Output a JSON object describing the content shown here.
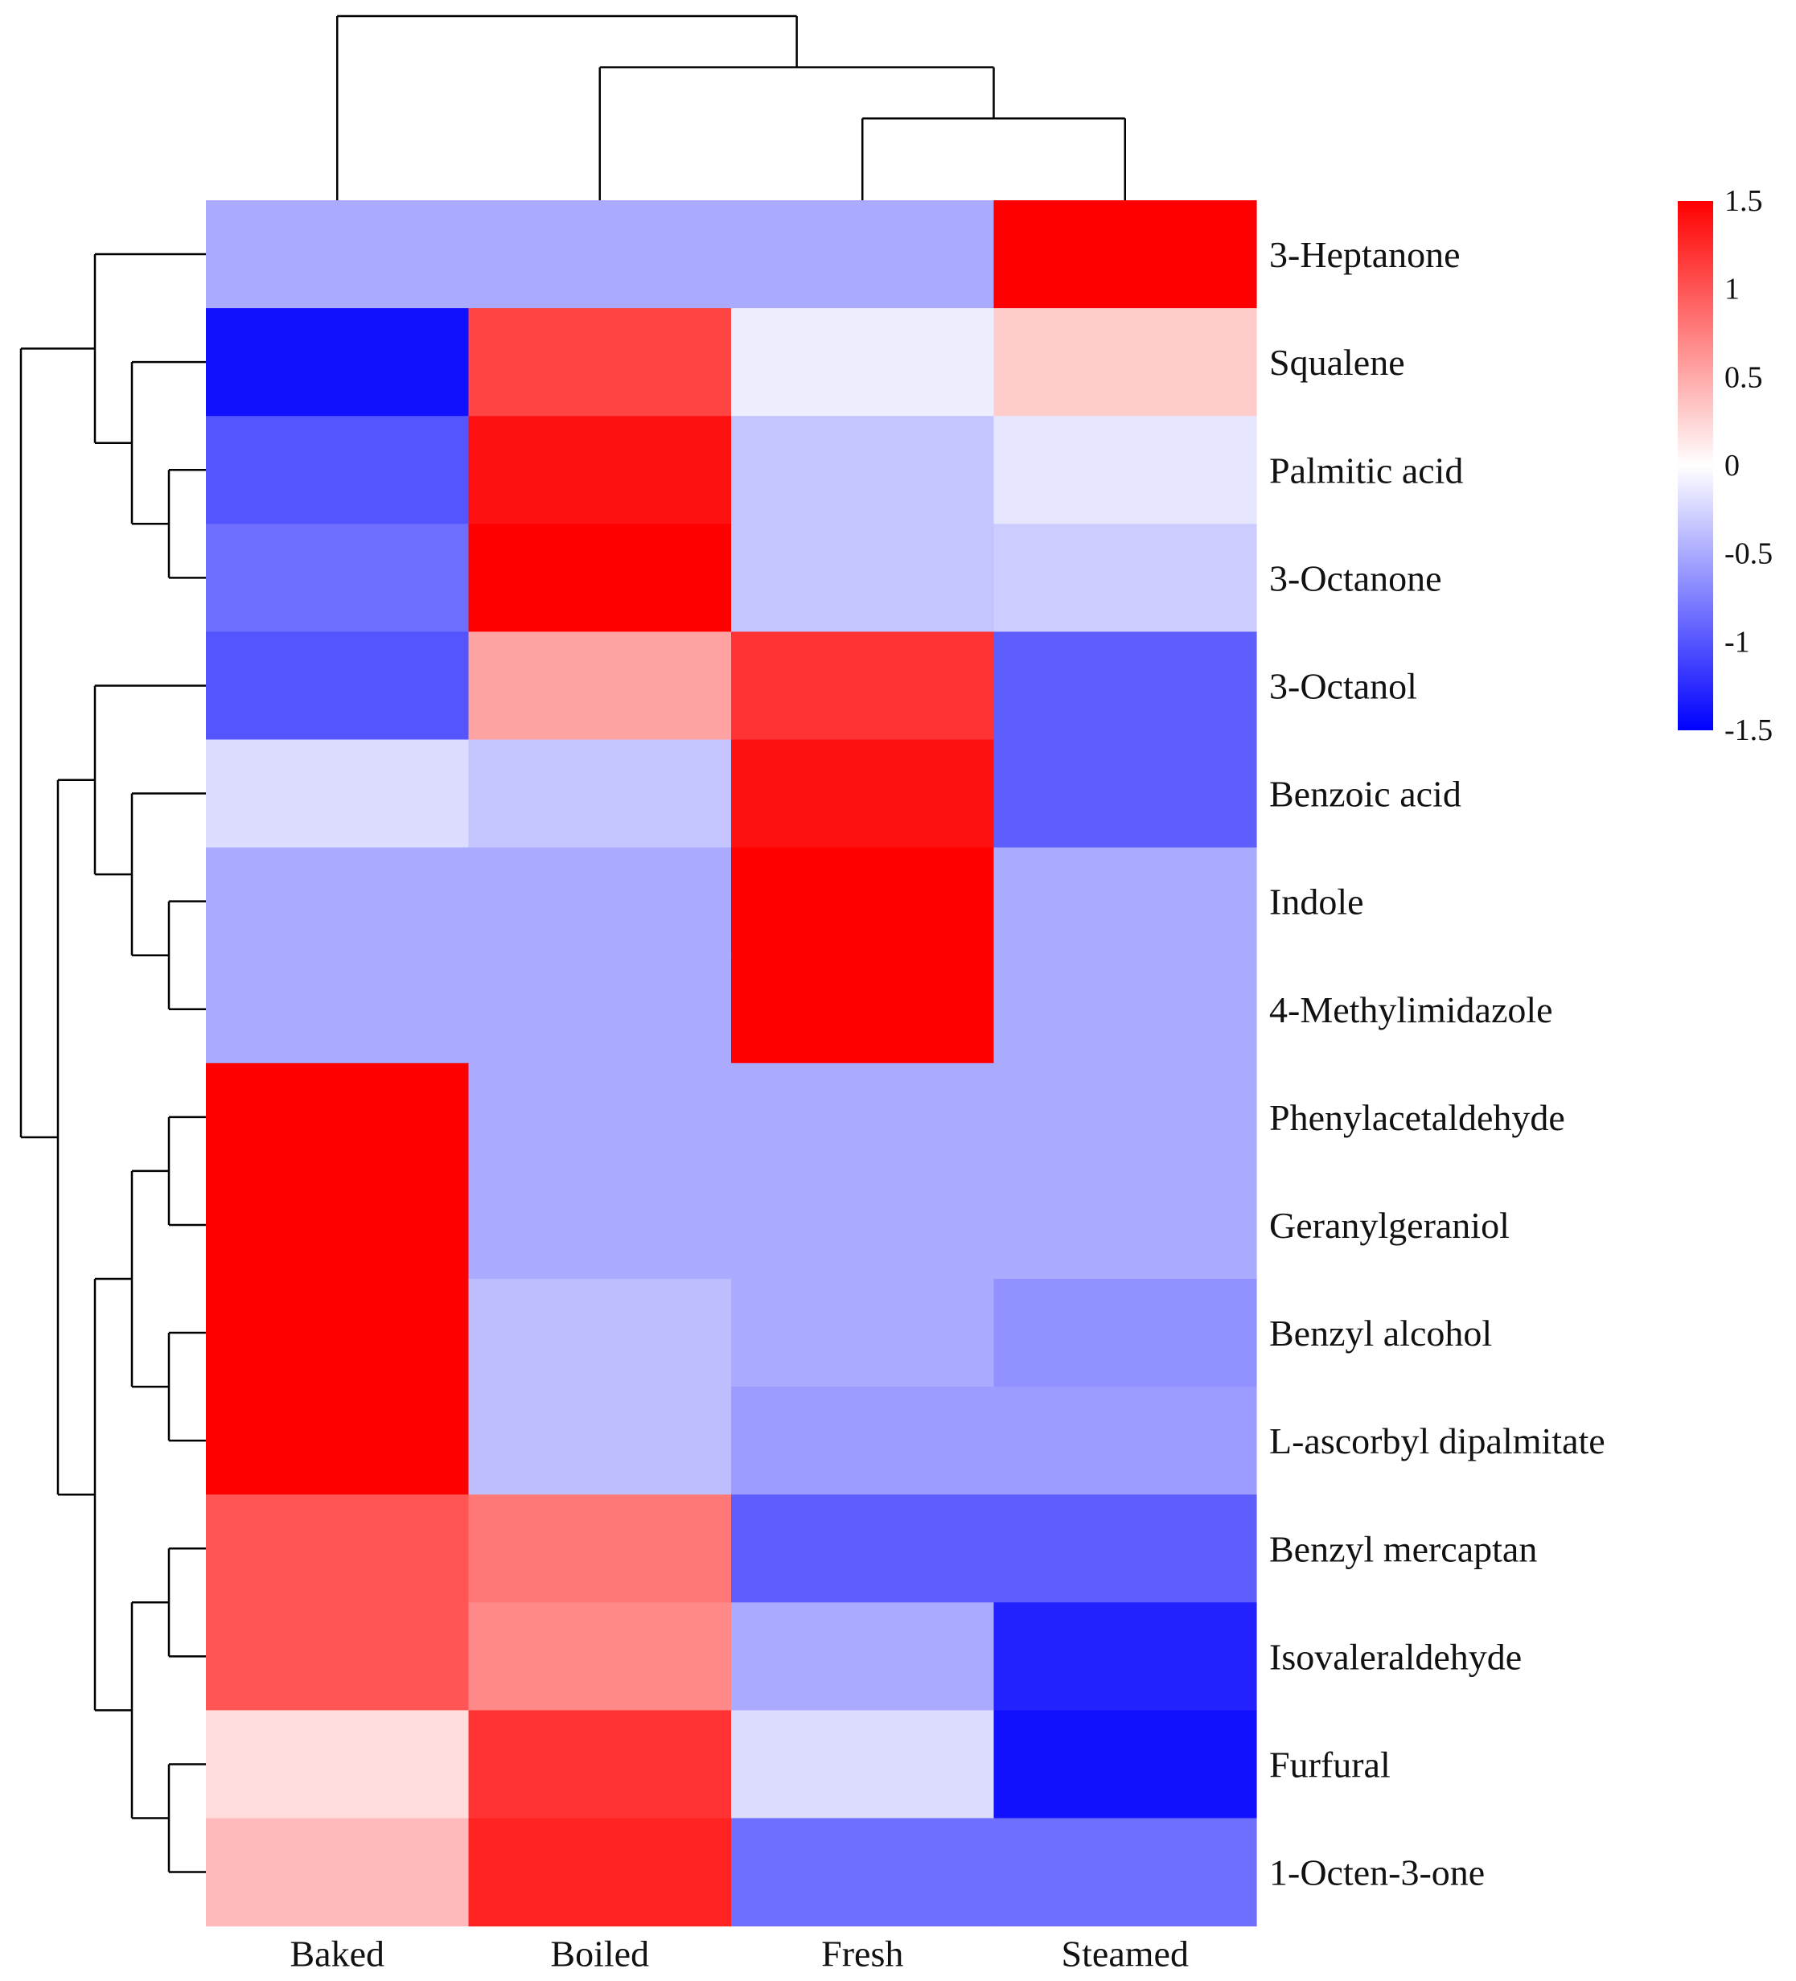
{
  "chart_data": {
    "type": "heatmap",
    "title": "",
    "xlabel": "",
    "ylabel": "",
    "columns": [
      "Baked",
      "Boiled",
      "Fresh",
      "Steamed"
    ],
    "rows": [
      "3-Heptanone",
      "Squalene",
      "Palmitic acid",
      "3-Octanone",
      "3-Octanol",
      "Benzoic acid",
      "Indole",
      "4-Methylimidazole",
      "Phenylacetaldehyde",
      "Geranylgeraniol",
      "Benzyl alcohol",
      "L-ascorbyl dipalmitate",
      "Benzyl mercaptan",
      "Isovaleraldehyde",
      "Furfural",
      "1-Octen-3-one"
    ],
    "values": [
      [
        -0.5,
        -0.5,
        -0.5,
        1.5
      ],
      [
        -1.4,
        1.1,
        -0.1,
        0.3
      ],
      [
        -1.0,
        1.4,
        -0.35,
        -0.15
      ],
      [
        -0.85,
        1.5,
        -0.35,
        -0.3
      ],
      [
        -1.0,
        0.55,
        1.2,
        -0.95
      ],
      [
        -0.2,
        -0.35,
        1.4,
        -0.95
      ],
      [
        -0.5,
        -0.5,
        1.5,
        -0.5
      ],
      [
        -0.5,
        -0.5,
        1.5,
        -0.5
      ],
      [
        1.5,
        -0.5,
        -0.5,
        -0.5
      ],
      [
        1.5,
        -0.5,
        -0.5,
        -0.5
      ],
      [
        1.5,
        -0.38,
        -0.5,
        -0.65
      ],
      [
        1.5,
        -0.38,
        -0.58,
        -0.58
      ],
      [
        1.0,
        0.8,
        -0.95,
        -0.95
      ],
      [
        1.0,
        0.7,
        -0.5,
        -1.3
      ],
      [
        0.2,
        1.2,
        -0.2,
        -1.4
      ],
      [
        0.4,
        1.3,
        -0.85,
        -0.85
      ]
    ],
    "color_scale": {
      "min": -1.5,
      "max": 1.5,
      "ticks": [
        "1.5",
        "1",
        "0.5",
        "0",
        "-0.5",
        "-1",
        "-1.5"
      ],
      "low_color": "#0000ff",
      "mid_color": "#ffffff",
      "high_color": "#ff0000"
    },
    "row_dendrogram": "((3-Heptanone,(Squalene,(Palmitic acid,3-Octanone))),((3-Octanol,(Benzoic acid,(Indole,4-Methylimidazole))),(((Phenylacetaldehyde,Geranylgeraniol),(Benzyl alcohol,L-ascorbyl dipalmitate)),((Benzyl mercaptan,Isovaleraldehyde),(Furfural,1-Octen-3-one)))))",
    "column_dendrogram": "(Baked,(Boiled,(Fresh,Steamed)))"
  }
}
